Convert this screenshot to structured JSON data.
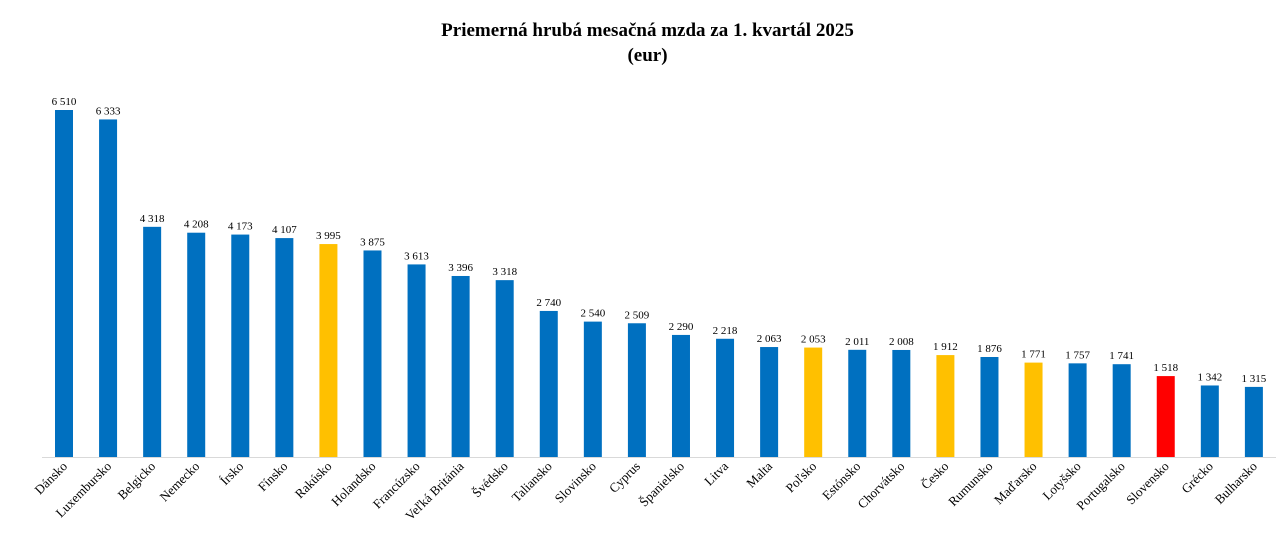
{
  "chart_data": {
    "type": "bar",
    "title": "Priemerná hrubá mesačná mzda za 1. kvartál 2025",
    "subtitle": "(eur)",
    "categories": [
      "Dánsko",
      "Luxembursko",
      "Belgicko",
      "Nemecko",
      "Írsko",
      "Fínsko",
      "Rakúsko",
      "Holandsko",
      "Francúzsko",
      "Veľká Británia",
      "Švédsko",
      "Taliansko",
      "Slovinsko",
      "Cyprus",
      "Španielsko",
      "Litva",
      "Malta",
      "Poľsko",
      "Estónsko",
      "Chorvátsko",
      "Česko",
      "Rumunsko",
      "Maďarsko",
      "Lotyšsko",
      "Portugalsko",
      "Slovensko",
      "Grécko",
      "Bulharsko"
    ],
    "values": [
      6510,
      6333,
      4318,
      4208,
      4173,
      4107,
      3995,
      3875,
      3613,
      3396,
      3318,
      2740,
      2540,
      2509,
      2290,
      2218,
      2063,
      2053,
      2011,
      2008,
      1912,
      1876,
      1771,
      1757,
      1741,
      1518,
      1342,
      1315
    ],
    "value_labels": [
      "6 510",
      "6 333",
      "4 318",
      "4 208",
      "4 173",
      "4 107",
      "3 995",
      "3 875",
      "3 613",
      "3 396",
      "3 318",
      "2 740",
      "2 540",
      "2 509",
      "2 290",
      "2 218",
      "2 063",
      "2 053",
      "2 011",
      "2 008",
      "1 912",
      "1 876",
      "1 771",
      "1 757",
      "1 741",
      "1 518",
      "1 342",
      "1 315"
    ],
    "colors": {
      "default": "#0070c0",
      "highlight": "#ffc000",
      "focus": "#ff0000"
    },
    "highlighted": [
      "Rakúsko",
      "Poľsko",
      "Česko",
      "Maďarsko"
    ],
    "focus": [
      "Slovensko"
    ],
    "ylim": [
      0,
      6510
    ],
    "grid": false,
    "legend": "none"
  }
}
